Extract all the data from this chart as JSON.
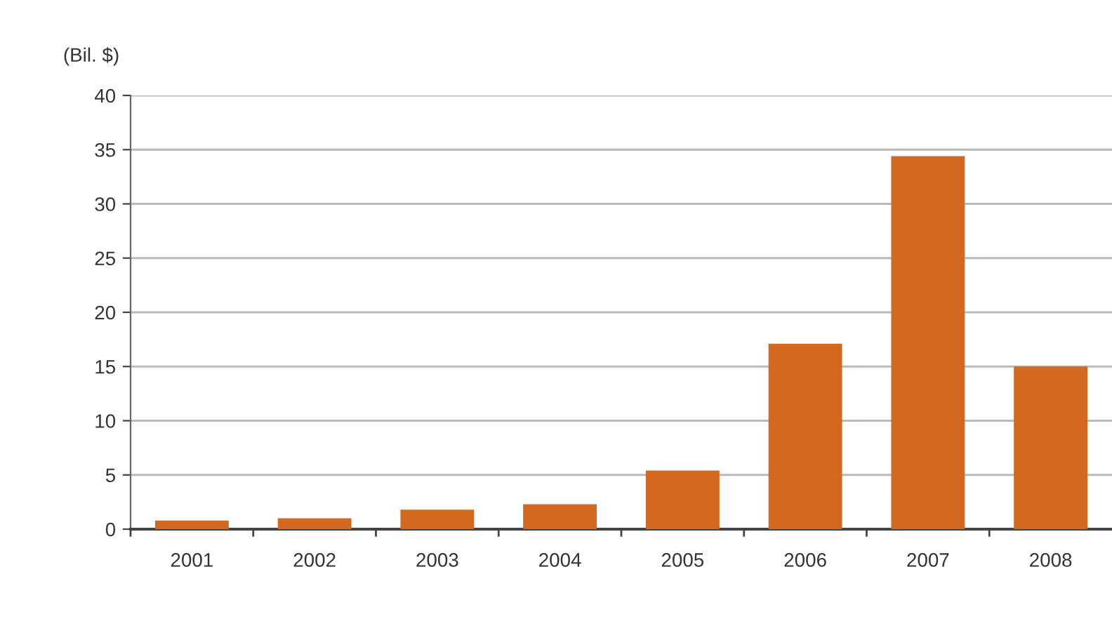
{
  "chart_data": {
    "type": "bar",
    "ylabel": "(Bil. $)",
    "categories": [
      "2001",
      "2002",
      "2003",
      "2004",
      "2005",
      "2006",
      "2007",
      "2008"
    ],
    "values": [
      0.8,
      1.0,
      1.8,
      2.3,
      5.4,
      17.1,
      34.4,
      15.0
    ],
    "color": "#d2691e",
    "ylim": [
      0,
      40
    ],
    "yticks": [
      0,
      5,
      10,
      15,
      20,
      25,
      30,
      35,
      40
    ],
    "grid": "y",
    "legend": false
  }
}
